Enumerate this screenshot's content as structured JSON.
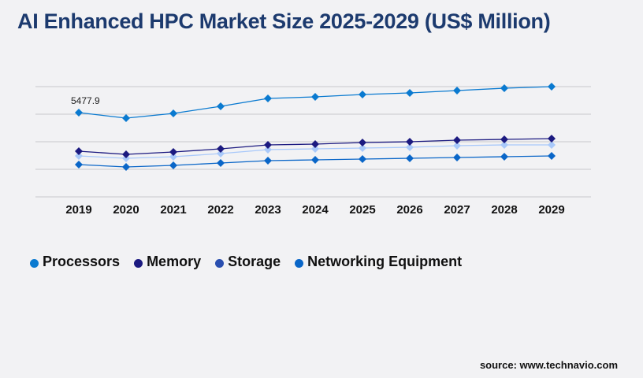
{
  "chart_data": {
    "type": "line",
    "title": "AI Enhanced HPC Market Size 2025-2029 (US$ Million)",
    "xlabel": "",
    "ylabel": "",
    "x": [
      "2019",
      "2020",
      "2021",
      "2022",
      "2023",
      "2024",
      "2025",
      "2026",
      "2027",
      "2028",
      "2029"
    ],
    "ylim": [
      0,
      7168
    ],
    "grid": true,
    "legend_position": "bottom-left",
    "series": [
      {
        "name": "Processors",
        "color": "#0a7ad0",
        "legend_color": "#0a7ad0",
        "values": [
          5477.9,
          5120,
          5427,
          5888,
          6400,
          6502,
          6656,
          6758,
          6912,
          7066,
          7168
        ]
      },
      {
        "name": "Memory",
        "color": "#1c1a80",
        "legend_color": "#1c1a80",
        "values": [
          2970,
          2765,
          2918,
          3123,
          3379,
          3430,
          3533,
          3584,
          3686,
          3738,
          3789
        ]
      },
      {
        "name": "Storage",
        "color": "#a9c9fa",
        "legend_color": "#2a4fb0",
        "values": [
          2662,
          2509,
          2611,
          2816,
          3072,
          3123,
          3174,
          3226,
          3328,
          3379,
          3379
        ]
      },
      {
        "name": "Networking Equipment",
        "color": "#0a66c8",
        "legend_color": "#0a66c8",
        "values": [
          2099,
          1946,
          2048,
          2202,
          2355,
          2406,
          2458,
          2509,
          2560,
          2611,
          2662
        ]
      }
    ],
    "annotations": [
      {
        "series": "Processors",
        "x": "2019",
        "text": "5477.9"
      }
    ]
  },
  "source": "source: www.technavio.com"
}
